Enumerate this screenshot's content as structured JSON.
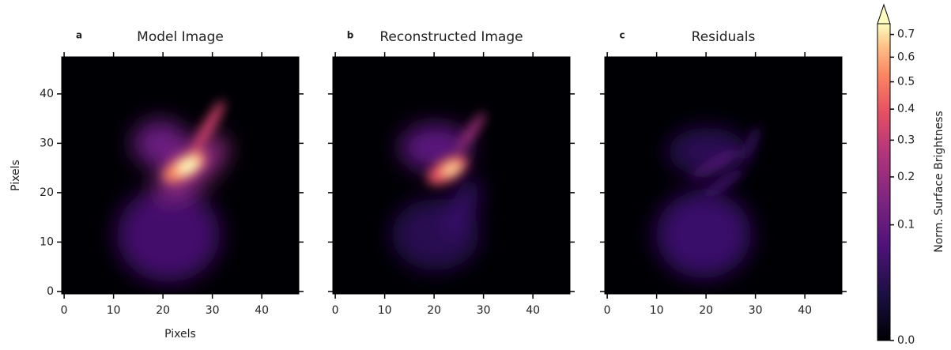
{
  "chart_data": [
    {
      "type": "image",
      "panel": "a",
      "title": "Model Image",
      "xlabel": "Pixels",
      "ylabel": "Pixels",
      "xlim": [
        -0.5,
        47.5
      ],
      "xticks": [
        0,
        10,
        20,
        30,
        40
      ],
      "ylim": [
        -0.5,
        47.5
      ],
      "yticks": [
        0,
        10,
        20,
        30,
        40
      ],
      "ytick_labels": true
    },
    {
      "type": "image",
      "panel": "b",
      "title": "Reconstructed Image",
      "xlim": [
        -0.5,
        47.5
      ],
      "xticks": [
        0,
        10,
        20,
        30,
        40
      ],
      "ylim": [
        -0.5,
        47.5
      ],
      "yticks": [
        0,
        10,
        20,
        30,
        40
      ],
      "ytick_labels": false
    },
    {
      "type": "image",
      "panel": "c",
      "title": "Residuals",
      "xlim": [
        -0.5,
        47.5
      ],
      "xticks": [
        0,
        10,
        20,
        30,
        40
      ],
      "ylim": [
        -0.5,
        47.5
      ],
      "yticks": [
        0,
        10,
        20,
        30,
        40
      ],
      "ytick_labels": false
    },
    {
      "type": "colorbar",
      "label": "Norm. Surface Brightness",
      "colormap": "magma",
      "scale": "sqrt",
      "ylim": [
        0,
        0.75
      ],
      "yticks": [
        {
          "value": 0,
          "label": "0.0"
        },
        0.1,
        0.2,
        0.3,
        0.4,
        0.5,
        0.6,
        0.7
      ]
    }
  ]
}
